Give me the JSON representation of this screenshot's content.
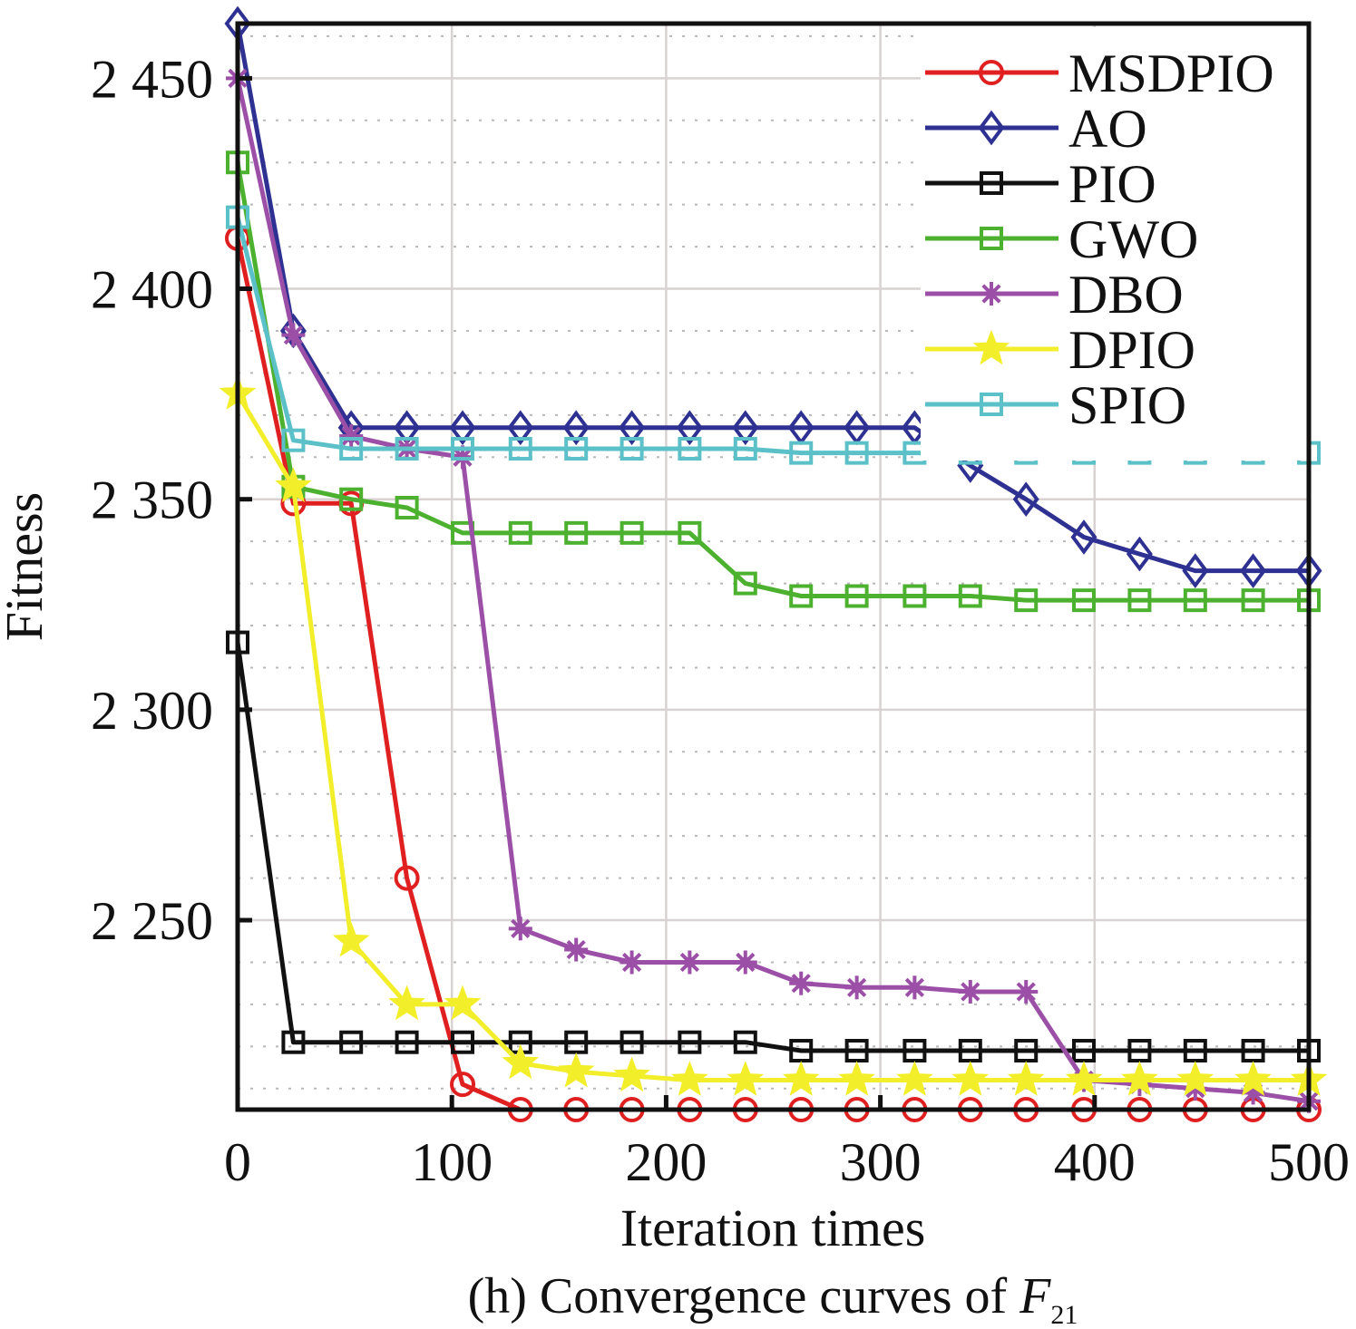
{
  "chart_data": {
    "type": "line",
    "title": "",
    "caption": {
      "prefix": "(h) Convergence curves of ",
      "symbol": "F",
      "subscript": "21"
    },
    "xlabel": "Iteration times",
    "ylabel": "Fitness",
    "xlim": [
      0,
      500
    ],
    "ylim": [
      2205,
      2463
    ],
    "xticks": [
      0,
      100,
      200,
      300,
      400,
      500
    ],
    "xtick_labels": [
      "0",
      "100",
      "200",
      "300",
      "400",
      "500"
    ],
    "yticks": [
      2250,
      2300,
      2350,
      2400,
      2450
    ],
    "ytick_labels": [
      "2 250",
      "2 300",
      "2 350",
      "2 400",
      "2 450"
    ],
    "grid": {
      "major": true,
      "minor_y_step": 10
    },
    "legend_position": "top-right",
    "x": [
      0,
      26,
      53,
      79,
      105,
      132,
      158,
      184,
      211,
      237,
      263,
      289,
      316,
      342,
      368,
      395,
      421,
      447,
      474,
      500
    ],
    "series": [
      {
        "name": "MSDPIO",
        "color": "#e02020",
        "marker": "circle",
        "values": [
          2412,
          2349,
          2349,
          2260,
          2211,
          2205,
          2205,
          2205,
          2205,
          2205,
          2205,
          2205,
          2205,
          2205,
          2205,
          2205,
          2205,
          2205,
          2205,
          2205
        ]
      },
      {
        "name": "AO",
        "color": "#2e3192",
        "marker": "diamond",
        "values": [
          2463,
          2390,
          2367,
          2367,
          2367,
          2367,
          2367,
          2367,
          2367,
          2367,
          2367,
          2367,
          2367,
          2358,
          2350,
          2341,
          2337,
          2333,
          2333,
          2333
        ]
      },
      {
        "name": "PIO",
        "color": "#111111",
        "marker": "square",
        "values": [
          2316,
          2221,
          2221,
          2221,
          2221,
          2221,
          2221,
          2221,
          2221,
          2221,
          2219,
          2219,
          2219,
          2219,
          2219,
          2219,
          2219,
          2219,
          2219,
          2219
        ]
      },
      {
        "name": "GWO",
        "color": "#4db130",
        "marker": "square",
        "values": [
          2430,
          2353,
          2350,
          2348,
          2342,
          2342,
          2342,
          2342,
          2342,
          2330,
          2327,
          2327,
          2327,
          2327,
          2326,
          2326,
          2326,
          2326,
          2326,
          2326
        ]
      },
      {
        "name": "DBO",
        "color": "#9b4fa6",
        "marker": "asterisk",
        "values": [
          2450,
          2389,
          2365,
          2362,
          2360,
          2248,
          2243,
          2240,
          2240,
          2240,
          2235,
          2234,
          2234,
          2233,
          2233,
          2212,
          2211,
          2210,
          2209,
          2207
        ]
      },
      {
        "name": "DPIO",
        "color": "#f2ee2a",
        "marker": "star",
        "values": [
          2375,
          2353,
          2245,
          2230,
          2230,
          2216,
          2214,
          2213,
          2212,
          2212,
          2212,
          2212,
          2212,
          2212,
          2212,
          2212,
          2212,
          2212,
          2212,
          2212
        ]
      },
      {
        "name": "SPIO",
        "color": "#5bc0c8",
        "marker": "square",
        "values": [
          2417,
          2364,
          2362,
          2362,
          2362,
          2362,
          2362,
          2362,
          2362,
          2362,
          2361,
          2361,
          2361,
          2361,
          2361,
          2361,
          2361,
          2361,
          2361,
          2361
        ]
      }
    ]
  }
}
